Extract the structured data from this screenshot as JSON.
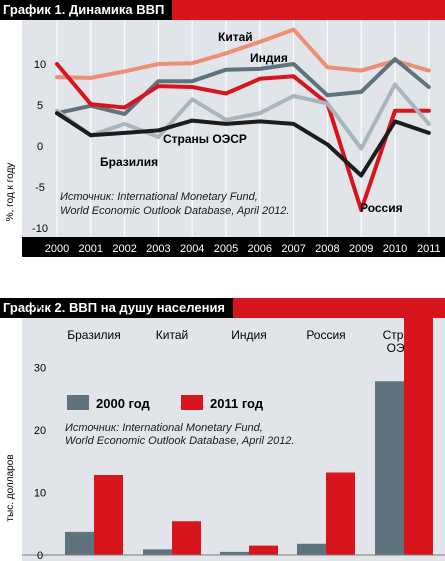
{
  "chart1": {
    "title": "График 1. Динамика ВВП",
    "ylabel": "%, год к году",
    "source_line1": "Источник: International Monetary Fund,",
    "source_line2": "World Economic Outlook Database, April 2012.",
    "chart_data": {
      "type": "line",
      "title": "График 1. Динамика ВВП",
      "xlabel": "",
      "ylabel": "%, год к году",
      "x": [
        "2000",
        "2001",
        "2002",
        "2003",
        "2004",
        "2005",
        "2006",
        "2007",
        "2008",
        "2009",
        "2010",
        "2011"
      ],
      "ylim": [
        -10,
        15
      ],
      "yticks": [
        10,
        5,
        0,
        -5,
        -10
      ],
      "grid": true,
      "series": [
        {
          "name": "Китай",
          "color": "#ec8f76",
          "values": [
            8.4,
            8.3,
            9.1,
            10.0,
            10.1,
            11.3,
            12.7,
            14.2,
            9.6,
            9.2,
            10.4,
            9.2
          ]
        },
        {
          "name": "Индия",
          "color": "#5f737f",
          "values": [
            4.0,
            4.9,
            3.9,
            7.9,
            7.9,
            9.3,
            9.4,
            10.0,
            6.2,
            6.6,
            10.6,
            7.2
          ]
        },
        {
          "name": "Россия",
          "color": "#d8141c",
          "values": [
            10.0,
            5.1,
            4.7,
            7.3,
            7.2,
            6.4,
            8.2,
            8.5,
            5.2,
            -7.8,
            4.3,
            4.3
          ]
        },
        {
          "name": "Бразилия",
          "color": "#a8b5bc",
          "values": [
            4.3,
            1.3,
            2.7,
            1.1,
            5.7,
            3.2,
            4.0,
            6.1,
            5.2,
            -0.3,
            7.5,
            2.7
          ]
        },
        {
          "name": "Страны ОЭСР",
          "color": "#1c1c1c",
          "values": [
            4.0,
            1.3,
            1.6,
            1.9,
            3.1,
            2.7,
            3.0,
            2.7,
            0.2,
            -3.6,
            3.0,
            1.6
          ]
        }
      ]
    }
  },
  "chart2": {
    "title": "График 2. ВВП на душу населения",
    "ylabel": "тыс. долларов",
    "source_line1": "Источник: International Monetary Fund,",
    "source_line2": "World Economic Outlook Database, April 2012.",
    "chart_data": {
      "type": "bar",
      "title": "График 2. ВВП на душу населения",
      "xlabel": "",
      "ylabel": "тыс. долларов",
      "categories": [
        "Бразилия",
        "Китай",
        "Индия",
        "Россия",
        "Страны ОЭСР"
      ],
      "ylim": [
        0,
        45
      ],
      "yticks": [
        0,
        10,
        20,
        30,
        40
      ],
      "grid": false,
      "legend": "top-left",
      "series": [
        {
          "name": "2000 год",
          "color": "#5f737f",
          "values": [
            3.7,
            0.9,
            0.5,
            1.8,
            27.8
          ]
        },
        {
          "name": "2011 год",
          "color": "#d8141c",
          "values": [
            12.8,
            5.4,
            1.5,
            13.2,
            39.2
          ]
        }
      ]
    }
  }
}
